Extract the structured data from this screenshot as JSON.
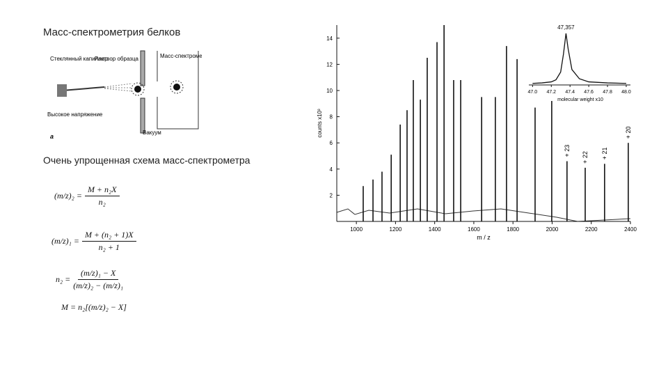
{
  "title": "Масс-спектрометрия белков",
  "diagram": {
    "labels": [
      "Стеклянный капилляр",
      "Раствор образца",
      "Масс-спектрометр",
      "Высокое напряжение",
      "Вакуум"
    ],
    "panel": "a"
  },
  "caption": "Очень упрощенная схема масс-спектрометра",
  "formulas": [
    {
      "lhs": "(m/z)₂ =",
      "numerator": "M + n₂X",
      "denominator": "n₂"
    },
    {
      "lhs": "(m/z)₁ =",
      "numerator": "M + (n₂ + 1)X",
      "denominator": "n₂ + 1"
    },
    {
      "lhs": "n₂ =",
      "numerator": "(m/z)₁ − X",
      "denominator": "(m/z)₂ − (m/z)₁"
    },
    {
      "lhs": "M = n₂[(m/z)₂ − X]"
    }
  ],
  "chart_data": {
    "type": "spectrum",
    "xlabel": "m / z",
    "ylabel": "counts x10³",
    "x": [
      1035,
      1085,
      1131,
      1178,
      1224,
      1259,
      1291,
      1327,
      1362,
      1412,
      1448,
      1497,
      1533,
      1640,
      1710,
      1767,
      1821,
      1913,
      1998,
      2076,
      2169,
      2268,
      2389
    ],
    "values": [
      2.7,
      3.2,
      3.8,
      5.1,
      7.4,
      8.5,
      10.8,
      9.3,
      12.5,
      13.7,
      15.0,
      10.8,
      10.8,
      9.5,
      9.5,
      13.4,
      12.4,
      8.7,
      9.2,
      4.6,
      4.1,
      4.4,
      6.0
    ],
    "color": "#111111",
    "xlim": [
      900,
      2400
    ],
    "ylim": [
      0,
      15
    ],
    "xticks": [
      1000,
      1200,
      1400,
      1600,
      1800,
      2000,
      2200,
      2400
    ],
    "yticks": [
      2,
      4,
      6,
      8,
      10,
      12,
      14
    ],
    "annotations": [
      {
        "x": 2076,
        "text": "+ 23"
      },
      {
        "x": 2169,
        "text": "+ 22"
      },
      {
        "x": 2268,
        "text": "+ 21"
      },
      {
        "x": 2389,
        "text": "+ 20"
      }
    ],
    "inset": {
      "xlabel": "molecular weight x10",
      "peak_label": "47,357",
      "x": [
        47.0,
        47.1,
        47.2,
        47.25,
        47.3,
        47.33,
        47.357,
        47.38,
        47.42,
        47.5,
        47.6,
        47.8,
        48.0
      ],
      "values": [
        3,
        4,
        6,
        10,
        25,
        60,
        100,
        70,
        30,
        12,
        6,
        4,
        3
      ],
      "xlim": [
        46.99,
        48.03
      ],
      "xticks": [
        {
          "value": 47,
          "label": "47.0"
        },
        47.2,
        47.4,
        47.6,
        47.8,
        {
          "value": 48,
          "label": "48.0"
        }
      ]
    }
  }
}
